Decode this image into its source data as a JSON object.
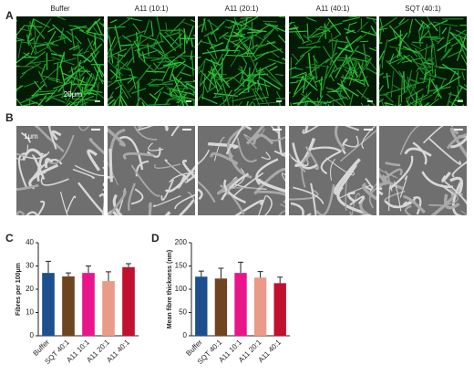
{
  "figure": {
    "panels": [
      {
        "label": "A",
        "columns": [
          "Buffer",
          "A11 (10:1)",
          "A11 (20:1)",
          "A11 (40:1)",
          "SQT (40:1)"
        ],
        "scale_label": "20μm"
      },
      {
        "label": "B",
        "scale_label": "1μm"
      }
    ]
  },
  "chart_data": [
    {
      "type": "bar",
      "panel_label": "C",
      "y_label": "Fibres per 100μm",
      "categories": [
        "Buffer",
        "SQT 40:1",
        "A11 10:1",
        "A11 20:1",
        "A11 40:1"
      ],
      "values": [
        27,
        25.5,
        27,
        23.5,
        29.5
      ],
      "errors": [
        5,
        1.5,
        3,
        4,
        1.5
      ],
      "colors": [
        "#1d4f8f",
        "#6e4520",
        "#e8168a",
        "#e99a88",
        "#c2102f"
      ],
      "ylim": [
        0,
        40
      ],
      "yticks": [
        0,
        10,
        20,
        30,
        40
      ]
    },
    {
      "type": "bar",
      "panel_label": "D",
      "y_label": "Mean fibre thickness (nm)",
      "categories": [
        "Buffer",
        "SQT 40:1",
        "A11 10:1",
        "A11 20:1",
        "A11 40:1"
      ],
      "values": [
        127,
        123,
        135,
        125,
        113
      ],
      "errors": [
        12,
        22,
        23,
        13,
        13
      ],
      "colors": [
        "#1d4f8f",
        "#6e4520",
        "#e8168a",
        "#e99a88",
        "#c2102f"
      ],
      "ylim": [
        0,
        200
      ],
      "yticks": [
        0,
        50,
        100,
        150,
        200
      ]
    }
  ]
}
